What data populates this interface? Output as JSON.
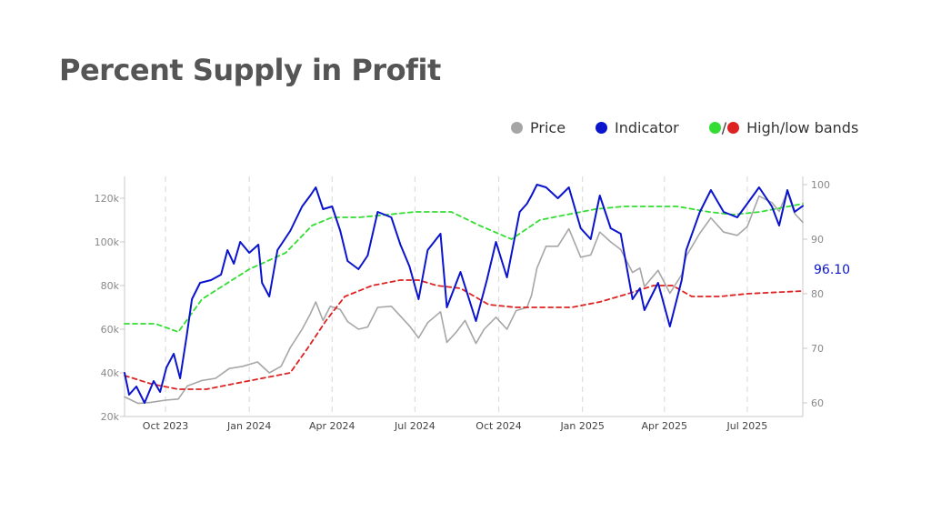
{
  "title": "Percent Supply in Profit",
  "legend": {
    "price_label": "Price",
    "indicator_label": "Indicator",
    "bands_label": "High/low bands",
    "bands_separator": "/"
  },
  "colors": {
    "price": "#a6a6a6",
    "indicator": "#0a14cc",
    "high_band": "#33dd33",
    "low_band": "#dd2222",
    "axis": "#c8c8c8",
    "grid": "#dddddd"
  },
  "chart_data": {
    "type": "line",
    "x_unit": "date",
    "xlim": [
      "2023-08-17",
      "2025-08-31"
    ],
    "y_left": {
      "label": "",
      "range": [
        20000,
        130000
      ],
      "ticks": [
        20000,
        40000,
        60000,
        80000,
        100000,
        120000
      ],
      "tick_labels": [
        "20k",
        "40k",
        "60k",
        "80k",
        "100k",
        "120k"
      ]
    },
    "y_right": {
      "label": "",
      "range": [
        57.5,
        101.5
      ],
      "ticks": [
        60,
        70,
        80,
        90,
        100
      ],
      "tick_labels": [
        "60",
        "70",
        "80",
        "90",
        "100"
      ]
    },
    "x_ticks": [
      "2023-10-01",
      "2024-01-01",
      "2024-04-01",
      "2024-07-01",
      "2024-10-01",
      "2025-01-01",
      "2025-04-01",
      "2025-07-01"
    ],
    "x_tick_labels": [
      "Oct 2023",
      "Jan 2024",
      "Apr 2024",
      "Jul 2024",
      "Oct 2024",
      "Jan 2025",
      "Apr 2025",
      "Jul 2025"
    ],
    "grid": {
      "vertical_dashed": true,
      "horizontal": false
    },
    "legend_placement": "top-right",
    "last_value_label": "96.10",
    "series": [
      {
        "name": "Price",
        "axis": "left",
        "style": "solid",
        "points": [
          [
            "2023-08-17",
            29000
          ],
          [
            "2023-09-01",
            26000
          ],
          [
            "2023-09-15",
            26500
          ],
          [
            "2023-10-01",
            27500
          ],
          [
            "2023-10-15",
            28000
          ],
          [
            "2023-10-25",
            34000
          ],
          [
            "2023-11-10",
            36500
          ],
          [
            "2023-11-25",
            37500
          ],
          [
            "2023-12-10",
            42000
          ],
          [
            "2023-12-25",
            43000
          ],
          [
            "2024-01-10",
            45000
          ],
          [
            "2024-01-23",
            40000
          ],
          [
            "2024-02-05",
            43000
          ],
          [
            "2024-02-15",
            51500
          ],
          [
            "2024-02-28",
            60000
          ],
          [
            "2024-03-08",
            67000
          ],
          [
            "2024-03-14",
            72500
          ],
          [
            "2024-03-22",
            64000
          ],
          [
            "2024-03-30",
            70500
          ],
          [
            "2024-04-10",
            69000
          ],
          [
            "2024-04-18",
            63500
          ],
          [
            "2024-04-30",
            60000
          ],
          [
            "2024-05-10",
            61000
          ],
          [
            "2024-05-21",
            70000
          ],
          [
            "2024-06-05",
            70500
          ],
          [
            "2024-06-15",
            66000
          ],
          [
            "2024-06-25",
            61500
          ],
          [
            "2024-07-05",
            56000
          ],
          [
            "2024-07-15",
            63000
          ],
          [
            "2024-07-29",
            68000
          ],
          [
            "2024-08-05",
            54000
          ],
          [
            "2024-08-15",
            58500
          ],
          [
            "2024-08-25",
            64000
          ],
          [
            "2024-09-06",
            53500
          ],
          [
            "2024-09-15",
            60000
          ],
          [
            "2024-09-28",
            65500
          ],
          [
            "2024-10-10",
            60000
          ],
          [
            "2024-10-20",
            68500
          ],
          [
            "2024-11-01",
            70000
          ],
          [
            "2024-11-06",
            75500
          ],
          [
            "2024-11-12",
            88000
          ],
          [
            "2024-11-22",
            98000
          ],
          [
            "2024-12-05",
            98000
          ],
          [
            "2024-12-17",
            106000
          ],
          [
            "2024-12-30",
            93000
          ],
          [
            "2025-01-10",
            94000
          ],
          [
            "2025-01-20",
            104500
          ],
          [
            "2025-02-01",
            100000
          ],
          [
            "2025-02-12",
            96500
          ],
          [
            "2025-02-25",
            86000
          ],
          [
            "2025-03-05",
            88000
          ],
          [
            "2025-03-10",
            79500
          ],
          [
            "2025-03-25",
            87000
          ],
          [
            "2025-04-07",
            76500
          ],
          [
            "2025-04-20",
            85000
          ],
          [
            "2025-04-25",
            93500
          ],
          [
            "2025-05-10",
            104000
          ],
          [
            "2025-05-22",
            111000
          ],
          [
            "2025-06-05",
            104500
          ],
          [
            "2025-06-20",
            103000
          ],
          [
            "2025-07-01",
            107000
          ],
          [
            "2025-07-14",
            121000
          ],
          [
            "2025-07-28",
            118000
          ],
          [
            "2025-08-05",
            114000
          ],
          [
            "2025-08-14",
            123000
          ],
          [
            "2025-08-22",
            113000
          ],
          [
            "2025-08-31",
            109000
          ]
        ]
      },
      {
        "name": "Indicator",
        "axis": "right",
        "style": "solid",
        "points": [
          [
            "2023-08-17",
            65.5
          ],
          [
            "2023-08-22",
            61.5
          ],
          [
            "2023-08-30",
            63
          ],
          [
            "2023-09-08",
            60
          ],
          [
            "2023-09-18",
            64
          ],
          [
            "2023-09-25",
            62
          ],
          [
            "2023-10-02",
            66.5
          ],
          [
            "2023-10-10",
            69
          ],
          [
            "2023-10-17",
            64.5
          ],
          [
            "2023-10-24",
            72
          ],
          [
            "2023-10-30",
            79
          ],
          [
            "2023-11-08",
            82
          ],
          [
            "2023-11-20",
            82.5
          ],
          [
            "2023-12-01",
            83.5
          ],
          [
            "2023-12-08",
            88
          ],
          [
            "2023-12-15",
            85.5
          ],
          [
            "2023-12-22",
            89.5
          ],
          [
            "2024-01-01",
            87.5
          ],
          [
            "2024-01-11",
            89
          ],
          [
            "2024-01-15",
            82
          ],
          [
            "2024-01-23",
            79.5
          ],
          [
            "2024-02-01",
            88
          ],
          [
            "2024-02-15",
            91.5
          ],
          [
            "2024-02-28",
            96
          ],
          [
            "2024-03-08",
            98
          ],
          [
            "2024-03-14",
            99.5
          ],
          [
            "2024-03-22",
            95.5
          ],
          [
            "2024-04-01",
            96
          ],
          [
            "2024-04-10",
            91.5
          ],
          [
            "2024-04-18",
            86
          ],
          [
            "2024-04-30",
            84.5
          ],
          [
            "2024-05-10",
            87
          ],
          [
            "2024-05-21",
            95
          ],
          [
            "2024-06-05",
            94
          ],
          [
            "2024-06-15",
            89
          ],
          [
            "2024-06-25",
            85
          ],
          [
            "2024-07-05",
            79
          ],
          [
            "2024-07-15",
            88
          ],
          [
            "2024-07-29",
            91
          ],
          [
            "2024-08-05",
            77.5
          ],
          [
            "2024-08-20",
            84
          ],
          [
            "2024-09-06",
            75
          ],
          [
            "2024-09-18",
            82.5
          ],
          [
            "2024-09-28",
            89.5
          ],
          [
            "2024-10-10",
            83
          ],
          [
            "2024-10-24",
            95
          ],
          [
            "2024-11-01",
            96.5
          ],
          [
            "2024-11-06",
            98
          ],
          [
            "2024-11-12",
            100
          ],
          [
            "2024-11-22",
            99.5
          ],
          [
            "2024-12-05",
            97.5
          ],
          [
            "2024-12-17",
            99.5
          ],
          [
            "2024-12-30",
            92
          ],
          [
            "2025-01-10",
            90
          ],
          [
            "2025-01-20",
            98
          ],
          [
            "2025-02-01",
            92
          ],
          [
            "2025-02-12",
            91
          ],
          [
            "2025-02-25",
            79
          ],
          [
            "2025-03-05",
            81
          ],
          [
            "2025-03-10",
            77
          ],
          [
            "2025-03-25",
            82
          ],
          [
            "2025-04-07",
            74
          ],
          [
            "2025-04-20",
            82.5
          ],
          [
            "2025-04-25",
            88
          ],
          [
            "2025-05-10",
            95
          ],
          [
            "2025-05-22",
            99
          ],
          [
            "2025-06-05",
            95
          ],
          [
            "2025-06-20",
            94
          ],
          [
            "2025-07-01",
            96.5
          ],
          [
            "2025-07-14",
            99.5
          ],
          [
            "2025-07-28",
            96
          ],
          [
            "2025-08-05",
            92.5
          ],
          [
            "2025-08-14",
            99
          ],
          [
            "2025-08-22",
            95
          ],
          [
            "2025-08-31",
            96.1
          ]
        ]
      },
      {
        "name": "High band",
        "axis": "right",
        "style": "dashed",
        "points": [
          [
            "2023-08-17",
            74.5
          ],
          [
            "2023-09-20",
            74.5
          ],
          [
            "2023-10-15",
            73
          ],
          [
            "2023-11-10",
            79
          ],
          [
            "2024-01-01",
            84.5
          ],
          [
            "2024-02-10",
            87.5
          ],
          [
            "2024-03-10",
            92.5
          ],
          [
            "2024-04-01",
            94
          ],
          [
            "2024-05-01",
            94
          ],
          [
            "2024-06-01",
            94.5
          ],
          [
            "2024-07-01",
            95
          ],
          [
            "2024-08-10",
            95
          ],
          [
            "2024-09-10",
            92.5
          ],
          [
            "2024-10-15",
            90
          ],
          [
            "2024-11-15",
            93.5
          ],
          [
            "2024-12-15",
            94.5
          ],
          [
            "2025-01-15",
            95.5
          ],
          [
            "2025-02-15",
            96
          ],
          [
            "2025-03-15",
            96
          ],
          [
            "2025-04-15",
            96
          ],
          [
            "2025-05-20",
            95
          ],
          [
            "2025-06-15",
            94.5
          ],
          [
            "2025-07-15",
            95
          ],
          [
            "2025-08-31",
            96.5
          ]
        ]
      },
      {
        "name": "Low band",
        "axis": "right",
        "style": "dashed",
        "points": [
          [
            "2023-08-17",
            65
          ],
          [
            "2023-09-15",
            63.5
          ],
          [
            "2023-10-15",
            62.5
          ],
          [
            "2023-11-15",
            62.5
          ],
          [
            "2023-12-15",
            63.5
          ],
          [
            "2024-01-15",
            64.5
          ],
          [
            "2024-02-15",
            65.5
          ],
          [
            "2024-03-05",
            70
          ],
          [
            "2024-03-25",
            75
          ],
          [
            "2024-04-15",
            79.5
          ],
          [
            "2024-05-15",
            81.5
          ],
          [
            "2024-06-15",
            82.5
          ],
          [
            "2024-07-05",
            82.5
          ],
          [
            "2024-07-25",
            81.5
          ],
          [
            "2024-08-20",
            81
          ],
          [
            "2024-09-20",
            78
          ],
          [
            "2024-10-20",
            77.5
          ],
          [
            "2024-11-20",
            77.5
          ],
          [
            "2024-12-20",
            77.5
          ],
          [
            "2025-01-20",
            78.5
          ],
          [
            "2025-02-20",
            80
          ],
          [
            "2025-03-20",
            81.5
          ],
          [
            "2025-04-10",
            81.5
          ],
          [
            "2025-05-01",
            79.5
          ],
          [
            "2025-06-01",
            79.5
          ],
          [
            "2025-07-01",
            80
          ],
          [
            "2025-08-31",
            80.5
          ]
        ]
      }
    ]
  }
}
